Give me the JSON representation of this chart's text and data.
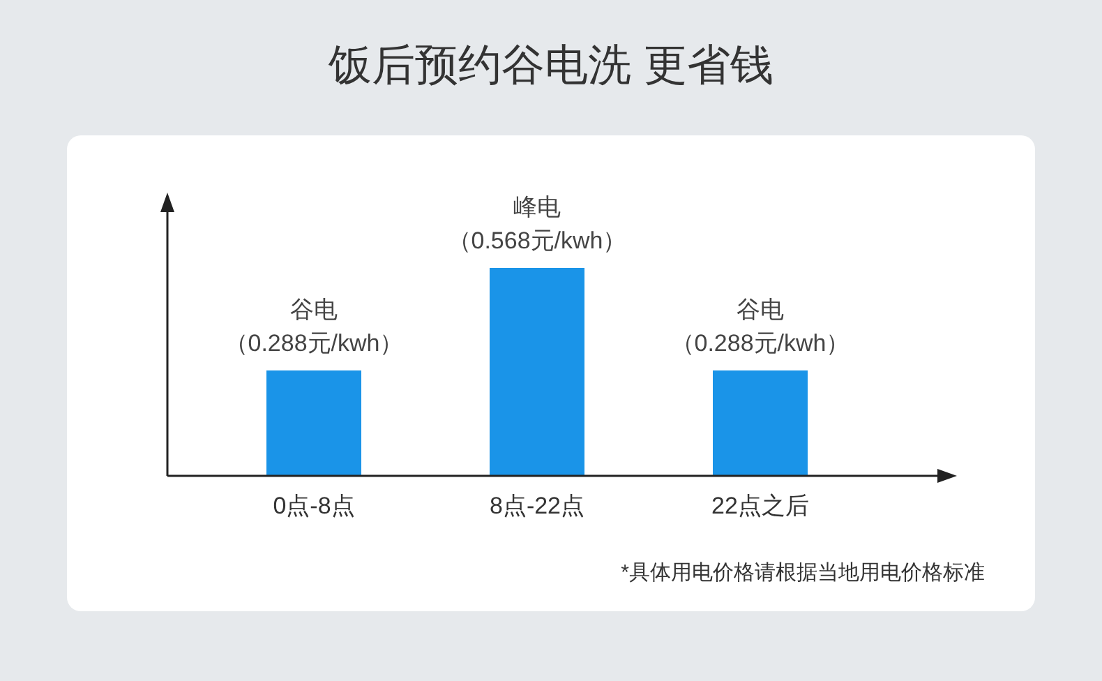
{
  "chart_data": {
    "type": "bar",
    "title": "饭后预约谷电洗 更省钱",
    "categories": [
      "0点-8点",
      "8点-22点",
      "22点之后"
    ],
    "values": [
      0.288,
      0.568,
      0.288
    ],
    "color": "#1a94e8",
    "value_labels": [
      "（0.288元/kwh）",
      "（0.568元/kwh）",
      "（0.288元/kwh）"
    ],
    "annotations": [
      {
        "text": "谷电",
        "x": "0点-8点",
        "y": 0.288
      },
      {
        "text": "峰电",
        "x": "8点-22点",
        "y": 0.568
      },
      {
        "text": "谷电",
        "x": "22点之后",
        "y": 0.288
      },
      "*具体用电价格请根据当地用电价格标准"
    ]
  }
}
